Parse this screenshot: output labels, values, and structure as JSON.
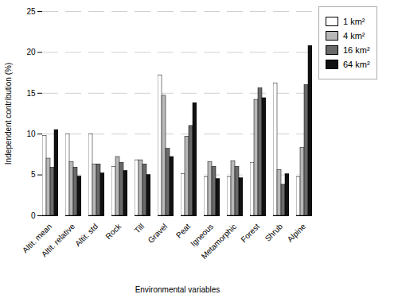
{
  "chart_data": {
    "type": "bar",
    "xlabel": "Environmental variables",
    "ylabel": "Independent contribution (%)",
    "categories": [
      "Altit. mean",
      "Altit. relative",
      "Altit. std",
      "Rock",
      "Till",
      "Gravel",
      "Peat",
      "Igneous",
      "Metamorphic",
      "Forest",
      "Shrub",
      "Alpine"
    ],
    "series": [
      {
        "name": "1 km²",
        "color": "#ffffff",
        "values": [
          9.8,
          10.0,
          10.0,
          6.0,
          6.8,
          17.2,
          5.1,
          4.7,
          4.7,
          6.5,
          16.2,
          4.7
        ]
      },
      {
        "name": "4 km²",
        "color": "#b8b8b8",
        "values": [
          7.0,
          6.6,
          6.3,
          7.2,
          6.8,
          14.7,
          9.7,
          6.6,
          6.7,
          14.2,
          5.6,
          8.3
        ]
      },
      {
        "name": "16 km²",
        "color": "#6a6a6a",
        "values": [
          5.9,
          5.9,
          6.3,
          6.5,
          6.3,
          8.2,
          11.0,
          6.0,
          6.0,
          15.6,
          3.8,
          16.0
        ]
      },
      {
        "name": "64 km²",
        "color": "#111111",
        "values": [
          10.5,
          4.8,
          5.2,
          5.5,
          5.0,
          7.2,
          13.8,
          4.5,
          4.6,
          14.4,
          5.1,
          20.8
        ]
      }
    ],
    "ylim": [
      0,
      25
    ],
    "yticks": [
      0,
      5,
      10,
      15,
      20,
      25
    ],
    "grid": true,
    "legend": "right"
  }
}
